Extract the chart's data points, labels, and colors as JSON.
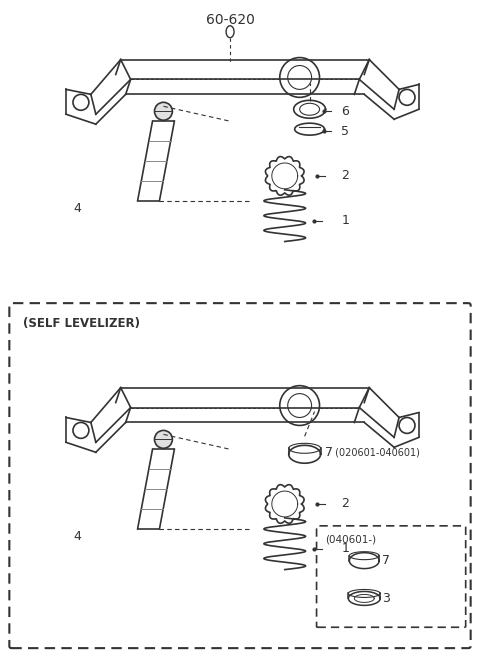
{
  "title": "60-620",
  "bg_color": "#ffffff",
  "line_color": "#333333",
  "gray_color": "#888888",
  "light_gray": "#cccccc",
  "self_levelizer_label": "(SELF LEVELIZER)",
  "part_labels": {
    "1": "1",
    "2": "2",
    "3": "3",
    "4": "4",
    "5": "5",
    "6": "6",
    "7": "7"
  },
  "label_7_date1": "(020601-040601)",
  "label_040601": "(040601-)"
}
